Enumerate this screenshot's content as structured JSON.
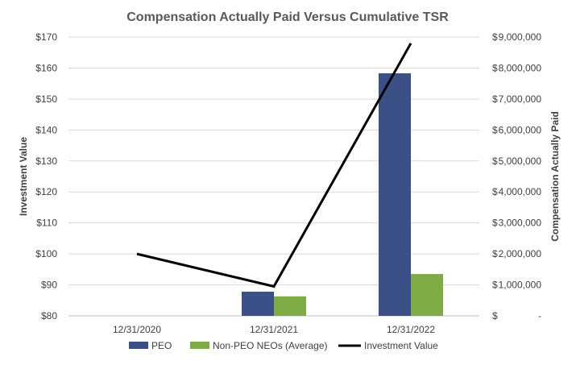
{
  "chart_data": {
    "type": "bar",
    "title": "Compensation Actually Paid Versus Cumulative TSR",
    "categories": [
      "12/31/2020",
      "12/31/2021",
      "12/31/2022"
    ],
    "y_left": {
      "label": "Investment Value",
      "ylim": [
        80,
        170
      ],
      "ticks": [
        80,
        90,
        100,
        110,
        120,
        130,
        140,
        150,
        160,
        170
      ],
      "tick_labels": [
        "$80",
        "$90",
        "$100",
        "$110",
        "$120",
        "$130",
        "$140",
        "$150",
        "$160",
        "$170"
      ]
    },
    "y_right": {
      "label": "Compensation Actually Paid",
      "ylim": [
        0,
        9000000
      ],
      "ticks": [
        0,
        1000000,
        2000000,
        3000000,
        4000000,
        5000000,
        6000000,
        7000000,
        8000000,
        9000000
      ],
      "tick_labels": [
        "$-",
        "$1,000,000",
        "$2,000,000",
        "$3,000,000",
        "$4,000,000",
        "$5,000,000",
        "$6,000,000",
        "$7,000,000",
        "$8,000,000",
        "$9,000,000"
      ]
    },
    "series": [
      {
        "name": "PEO",
        "kind": "bar",
        "axis": "right",
        "color": "#3B5087",
        "values": [
          null,
          780000,
          7830000
        ]
      },
      {
        "name": "Non-PEO NEOs (Average)",
        "kind": "bar",
        "axis": "right",
        "color": "#7EAB45",
        "values": [
          null,
          630000,
          1350000
        ]
      },
      {
        "name": "Investment Value",
        "kind": "line",
        "axis": "left",
        "color": "#000000",
        "values": [
          100,
          89.5,
          168
        ]
      }
    ],
    "grid": true,
    "legend_position": "bottom"
  }
}
